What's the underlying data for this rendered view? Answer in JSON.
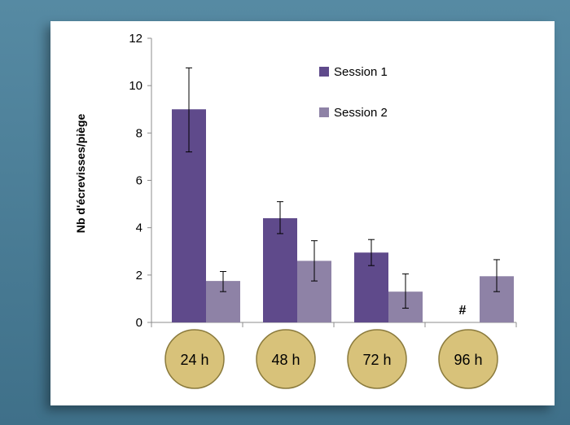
{
  "chart_data": {
    "type": "bar",
    "title": "",
    "xlabel": "",
    "ylabel": "Nb d'écrevisses/piège",
    "ylim": [
      0,
      12
    ],
    "yticks": [
      0,
      2,
      4,
      6,
      8,
      10,
      12
    ],
    "grid": false,
    "legend_position": "top-right",
    "categories": [
      "24 h",
      "48 h",
      "72 h",
      "96 h"
    ],
    "series": [
      {
        "name": "Session 1",
        "color": "#5f4a8b",
        "values": [
          9.0,
          4.4,
          2.95,
          null
        ],
        "error_low": [
          7.2,
          3.75,
          2.4,
          null
        ],
        "error_high": [
          10.75,
          5.1,
          3.5,
          null
        ]
      },
      {
        "name": "Session 2",
        "color": "#8e82a6",
        "values": [
          1.75,
          2.6,
          1.3,
          1.95
        ],
        "error_low": [
          1.3,
          1.75,
          0.6,
          1.3
        ],
        "error_high": [
          2.15,
          3.45,
          2.05,
          2.65
        ]
      }
    ],
    "annotations": [
      {
        "category": "96 h",
        "series": "Session 1",
        "text": "#"
      }
    ],
    "category_badge_color": "#d8c27a"
  }
}
